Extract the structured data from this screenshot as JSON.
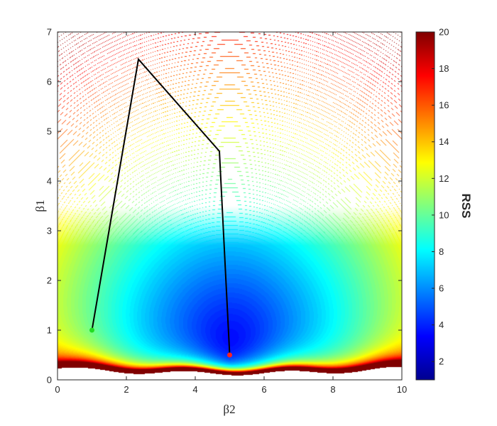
{
  "chart_data": {
    "type": "heatmap",
    "subtype": "filled-contour with descent path",
    "xlabel": "β2",
    "ylabel": "β1",
    "xlim": [
      0,
      10
    ],
    "ylim": [
      0,
      7
    ],
    "xticks": [
      "0",
      "2",
      "4",
      "6",
      "8",
      "10"
    ],
    "yticks": [
      "0",
      "1",
      "2",
      "3",
      "4",
      "5",
      "6",
      "7"
    ],
    "colorbar": {
      "label": "RSS",
      "range": [
        1,
        20
      ],
      "ticks": [
        "2",
        "4",
        "6",
        "8",
        "10",
        "12",
        "14",
        "16",
        "18",
        "20"
      ],
      "colormap": "jet"
    },
    "minimum": {
      "x": 5.0,
      "y": 0.4
    },
    "path": {
      "x": [
        1.0,
        2.35,
        4.7,
        5.0
      ],
      "y": [
        1.0,
        6.45,
        4.6,
        0.5
      ],
      "color": "#000000"
    },
    "start_point": {
      "x": 1.0,
      "y": 1.0,
      "color": "#22dd22"
    },
    "end_point": {
      "x": 5.0,
      "y": 0.5,
      "color": "#ff2020"
    },
    "grid": false
  }
}
